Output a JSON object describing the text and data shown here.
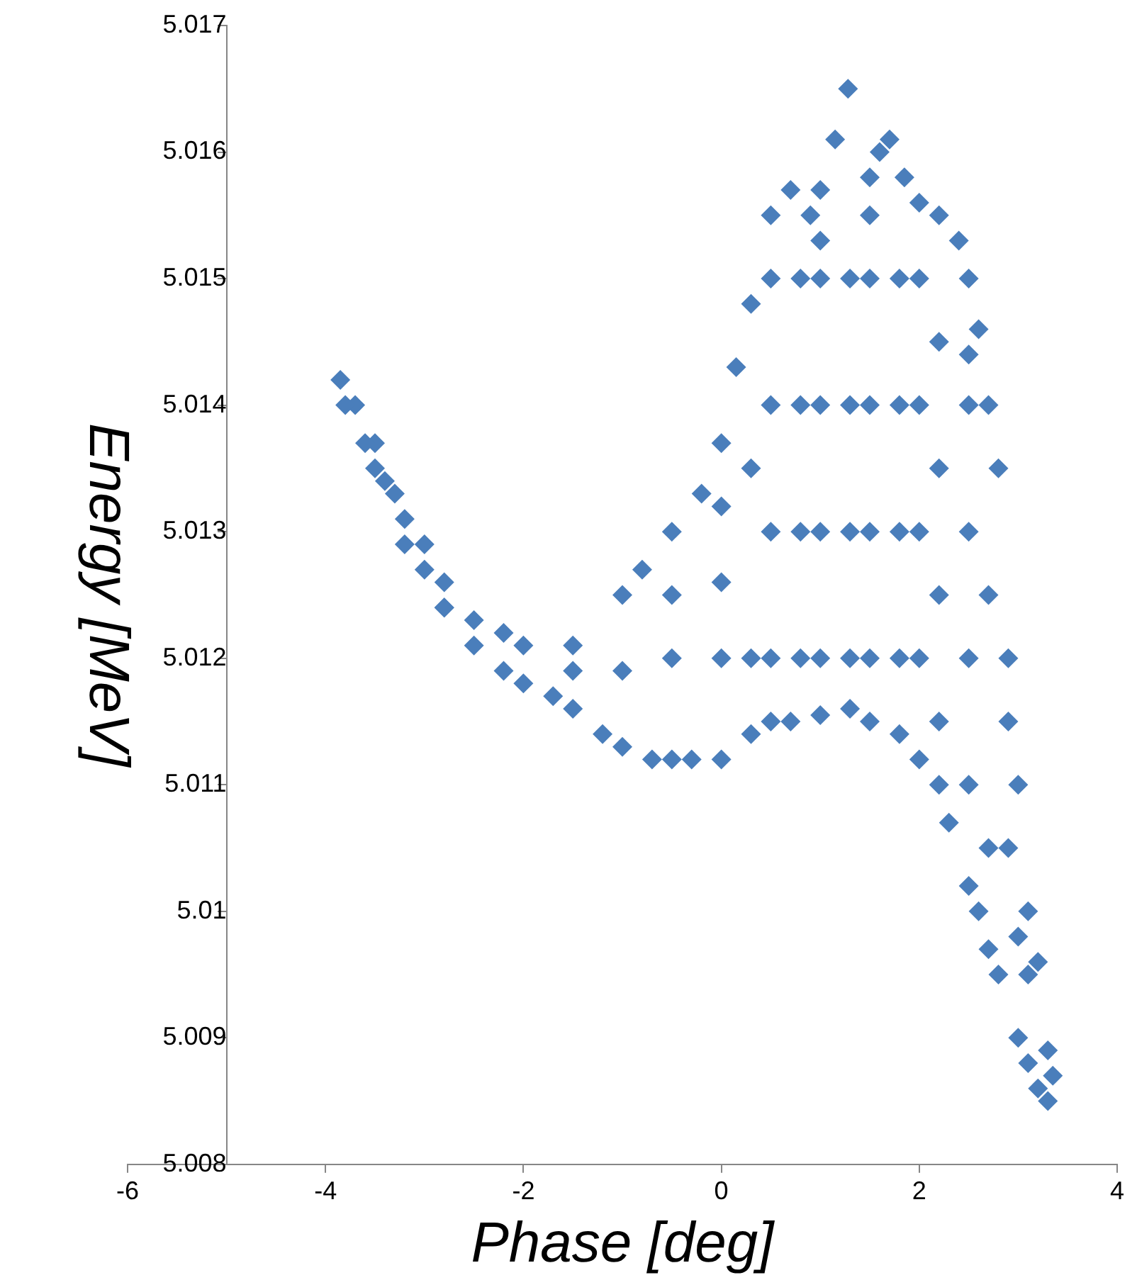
{
  "chart_data": {
    "type": "scatter",
    "xlabel": "Phase [deg]",
    "ylabel": "Energy [MeV]",
    "color": "#4a7ebb",
    "marker": "diamond",
    "xlim": [
      -6,
      4
    ],
    "xticks": [
      -6,
      -4,
      -2,
      0,
      2,
      4
    ],
    "ylim": [
      5.008,
      5.017
    ],
    "yticks": [
      5.008,
      5.009,
      5.01,
      5.011,
      5.012,
      5.013,
      5.014,
      5.015,
      5.016,
      5.017
    ],
    "x": [
      -3.85,
      -3.7,
      -3.5,
      -3.3,
      -3,
      -2.8,
      -2.5,
      -2.2,
      -2,
      -1.5,
      -1,
      -0.8,
      -0.5,
      -0.2,
      0,
      0.15,
      0.3,
      0.5,
      0.7,
      0.9,
      1,
      1.15,
      1.28,
      1.5,
      1.6,
      1.7,
      1.85,
      2,
      2.2,
      2.4,
      2.5,
      2.6,
      2.5,
      2.7,
      2.8,
      2.9,
      3,
      3.1,
      3.2,
      3.3,
      3.35,
      -3.8,
      -3.6,
      -3.4,
      -3.2,
      -3,
      -2.8,
      -2.5,
      -2.2,
      -2,
      -1.7,
      -1.5,
      -1.2,
      -1,
      -0.7,
      -0.5,
      -0.3,
      0,
      0.3,
      0.5,
      0.7,
      1,
      1.3,
      1.5,
      1.8,
      2,
      2.2,
      2.3,
      2.5,
      2.6,
      2.7,
      2.8,
      3,
      3.1,
      3.2,
      3.3,
      -3.5,
      -3.2,
      -2.8,
      -1.5,
      -1,
      -0.5,
      -0.5,
      0,
      0,
      0,
      0.3,
      0.3,
      0.5,
      0.5,
      0.5,
      0.5,
      0.8,
      0.8,
      0.8,
      0.8,
      1,
      1,
      1,
      1,
      1,
      1.3,
      1.3,
      1.3,
      1.3,
      1.5,
      1.5,
      1.5,
      1.5,
      1.5,
      1.8,
      1.8,
      1.8,
      1.8,
      2,
      2,
      2,
      2,
      2.2,
      2.2,
      2.2,
      2.2,
      2.5,
      2.5,
      2.5,
      2.5,
      2.7,
      2.7,
      2.9,
      2.9,
      3,
      3.1
    ],
    "values": [
      5.0142,
      5.014,
      5.0137,
      5.0133,
      5.0129,
      5.0126,
      5.0123,
      5.0122,
      5.0121,
      5.0121,
      5.0125,
      5.0127,
      5.013,
      5.0133,
      5.0137,
      5.0143,
      5.0148,
      5.0155,
      5.0157,
      5.0155,
      5.0157,
      5.0161,
      5.0165,
      5.0158,
      5.016,
      5.0161,
      5.0158,
      5.0156,
      5.0155,
      5.0153,
      5.015,
      5.0146,
      5.0144,
      5.014,
      5.0135,
      5.012,
      5.011,
      5.01,
      5.0096,
      5.0089,
      5.0087,
      5.014,
      5.0137,
      5.0134,
      5.0131,
      5.0127,
      5.0124,
      5.0121,
      5.0119,
      5.0118,
      5.0117,
      5.0116,
      5.0114,
      5.0113,
      5.0112,
      5.0112,
      5.0112,
      5.0112,
      5.0114,
      5.0115,
      5.0115,
      5.01155,
      5.0116,
      5.0115,
      5.0114,
      5.0112,
      5.011,
      5.0107,
      5.0102,
      5.01,
      5.0097,
      5.0095,
      5.009,
      5.0088,
      5.0086,
      5.0085,
      5.0135,
      5.0129,
      5.0124,
      5.0119,
      5.0119,
      5.012,
      5.0125,
      5.012,
      5.0126,
      5.0132,
      5.012,
      5.0135,
      5.012,
      5.013,
      5.014,
      5.015,
      5.012,
      5.013,
      5.014,
      5.015,
      5.012,
      5.013,
      5.014,
      5.015,
      5.0153,
      5.012,
      5.013,
      5.014,
      5.015,
      5.012,
      5.013,
      5.014,
      5.015,
      5.0155,
      5.012,
      5.013,
      5.014,
      5.015,
      5.012,
      5.013,
      5.014,
      5.015,
      5.0115,
      5.0125,
      5.0135,
      5.0145,
      5.011,
      5.012,
      5.013,
      5.014,
      5.0105,
      5.0125,
      5.0105,
      5.0115,
      5.0098,
      5.0095
    ]
  }
}
